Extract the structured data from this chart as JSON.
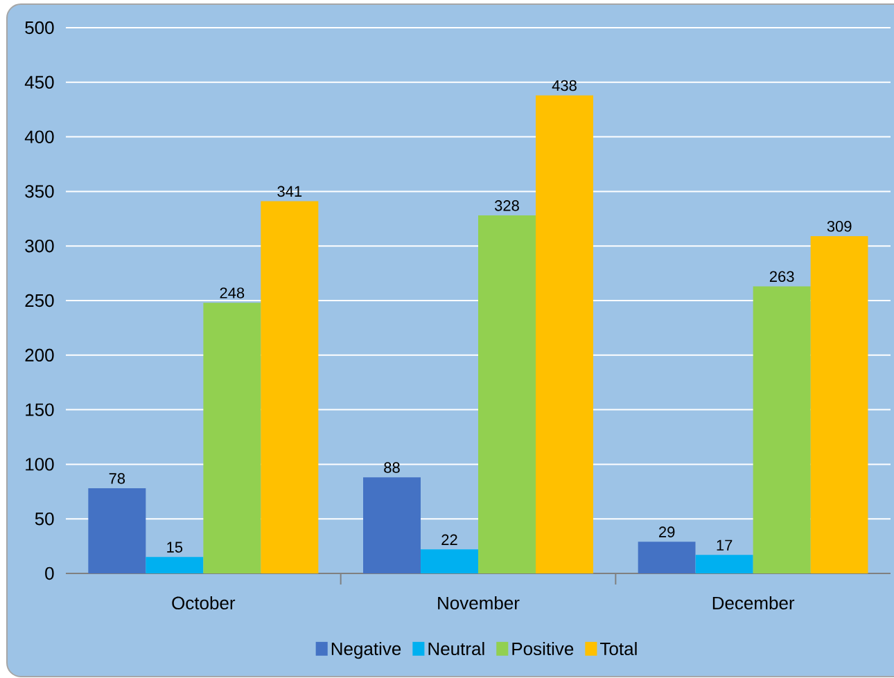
{
  "chart_data": {
    "type": "bar",
    "categories": [
      "October",
      "November",
      "December"
    ],
    "series": [
      {
        "name": "Negative",
        "color": "#4472c4",
        "values": [
          78,
          88,
          29
        ]
      },
      {
        "name": "Neutral",
        "color": "#00b0f0",
        "values": [
          15,
          22,
          17
        ]
      },
      {
        "name": "Positive",
        "color": "#92d050",
        "values": [
          248,
          328,
          263
        ]
      },
      {
        "name": "Total",
        "color": "#ffc000",
        "values": [
          341,
          438,
          309
        ]
      }
    ],
    "ylim": [
      0,
      500
    ],
    "yticks": [
      0,
      50,
      100,
      150,
      200,
      250,
      300,
      350,
      400,
      450,
      500
    ],
    "grid": "y",
    "legend": "bottom",
    "data_labels": true
  }
}
